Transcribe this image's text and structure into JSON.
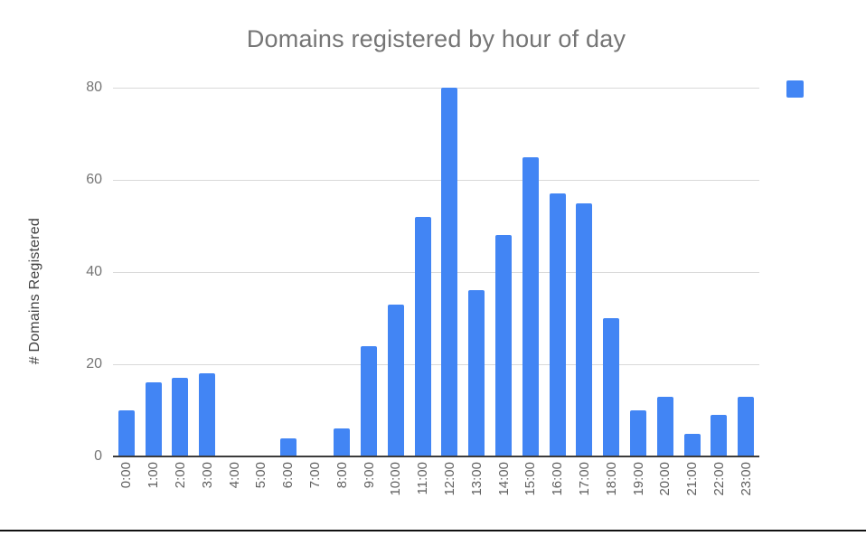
{
  "chart_data": {
    "type": "bar",
    "title": "Domains registered by hour of day",
    "categories": [
      "0:00",
      "1:00",
      "2:00",
      "3:00",
      "4:00",
      "5:00",
      "6:00",
      "7:00",
      "8:00",
      "9:00",
      "10:00",
      "11:00",
      "12:00",
      "13:00",
      "14:00",
      "15:00",
      "16:00",
      "17:00",
      "18:00",
      "19:00",
      "20:00",
      "21:00",
      "22:00",
      "23:00"
    ],
    "values": [
      10,
      16,
      17,
      18,
      0,
      0,
      4,
      0,
      6,
      24,
      33,
      52,
      80,
      36,
      48,
      65,
      57,
      55,
      30,
      10,
      13,
      5,
      9,
      13
    ],
    "xlabel": "",
    "ylabel": "# Domains Registered",
    "ylim": [
      0,
      80
    ],
    "yticks": [
      0,
      20,
      40,
      60,
      80
    ],
    "grid": true,
    "legend_position": "top-right",
    "legend_label": "",
    "bar_color": "#4285f4",
    "x_tick_rotation_degrees": 90
  },
  "colors": {
    "bar": "#4285f4",
    "gridline": "#d9d9d9",
    "axis": "#3b3b3b",
    "title_text": "#757575",
    "tick_text": "#757575",
    "x_tick_text": "#616161",
    "y_axis_title_text": "#424242",
    "bottom_rule": "#111111"
  }
}
